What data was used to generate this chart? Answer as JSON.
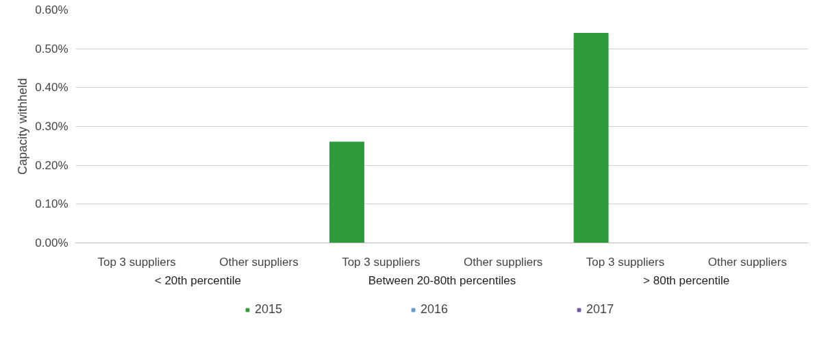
{
  "chart_data": {
    "type": "bar",
    "ylabel": "Capacity withheld",
    "categories": [
      "Top 3 suppliers",
      "Other suppliers",
      "Top 3 suppliers",
      "Other suppliers",
      "Top 3 suppliers",
      "Other suppliers"
    ],
    "annotations": [
      "< 20th percentile",
      "Between 20-80th percentiles",
      "> 80th percentile"
    ],
    "series": [
      {
        "name": "2015",
        "color": "#2e9a3a",
        "values": [
          null,
          null,
          0.26,
          null,
          0.54,
          null
        ]
      },
      {
        "name": "2016",
        "color": "#5b9bd5",
        "values": [
          null,
          null,
          null,
          null,
          null,
          null
        ]
      },
      {
        "name": "2017",
        "color": "#7054a8",
        "values": [
          null,
          null,
          null,
          null,
          null,
          null
        ]
      }
    ],
    "ylim": [
      0,
      0.6
    ],
    "yticks": [
      {
        "value": 0,
        "label": "0.00%"
      },
      {
        "value": 0.1,
        "label": "0.10%"
      },
      {
        "value": 0.2,
        "label": "0.20%"
      },
      {
        "value": 0.3,
        "label": "0.30%"
      },
      {
        "value": 0.4,
        "label": "0.40%"
      },
      {
        "value": 0.5,
        "label": "0.50%"
      },
      {
        "value": 0.6,
        "label": "0.60%"
      }
    ],
    "grid": "y",
    "legend": "bottom"
  }
}
